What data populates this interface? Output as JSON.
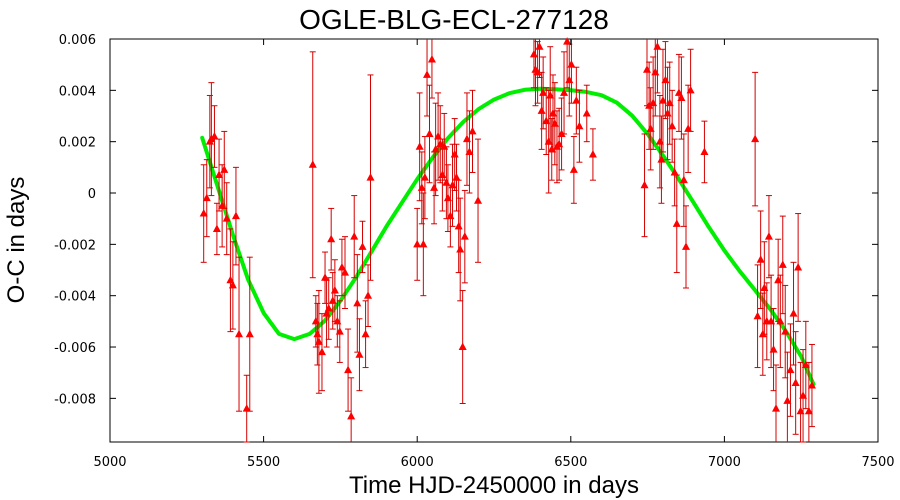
{
  "chart_data": {
    "type": "scatter",
    "title": "OGLE-BLG-ECL-277128",
    "xlabel": "Time HJD-2450000 in days",
    "ylabel": "O-C in days",
    "xlim": [
      5000,
      7500
    ],
    "ylim": [
      -0.0097,
      0.006
    ],
    "x_ticks": [
      5000,
      5500,
      6000,
      6500,
      7000,
      7500
    ],
    "x_tick_labels": [
      "5000",
      "5500",
      "6000",
      "6500",
      "7000",
      "7500"
    ],
    "y_ticks": [
      0.006,
      0.004,
      0.002,
      0,
      -0.002,
      -0.004,
      -0.006,
      -0.008
    ],
    "y_tick_labels": [
      "0.006",
      "0.004",
      "0.002",
      "0",
      "-0.002",
      "-0.004",
      "-0.006",
      "-0.008"
    ],
    "grid": false,
    "marker_color": "#ff0000",
    "fit_color": "#00ee00",
    "series": [
      {
        "kind": "points_with_errorbars",
        "points": [
          {
            "x": 5305,
            "y": -0.0008,
            "err": 0.0019
          },
          {
            "x": 5315,
            "y": -0.0002,
            "err": 0.0015
          },
          {
            "x": 5325,
            "y": 0.002,
            "err": 0.0018
          },
          {
            "x": 5330,
            "y": 0.0021,
            "err": 0.0022
          },
          {
            "x": 5340,
            "y": 0.0022,
            "err": 0.0012
          },
          {
            "x": 5348,
            "y": -0.0014,
            "err": 0.001
          },
          {
            "x": 5355,
            "y": 0.0007,
            "err": 0.0014
          },
          {
            "x": 5365,
            "y": -0.0005,
            "err": 0.0016
          },
          {
            "x": 5372,
            "y": 0.0009,
            "err": 0.0015
          },
          {
            "x": 5380,
            "y": -0.001,
            "err": 0.0014
          },
          {
            "x": 5392,
            "y": -0.0034,
            "err": 0.002
          },
          {
            "x": 5400,
            "y": -0.0036,
            "err": 0.0017
          },
          {
            "x": 5410,
            "y": -0.0009,
            "err": 0.0019
          },
          {
            "x": 5420,
            "y": -0.0055,
            "err": 0.003
          },
          {
            "x": 5445,
            "y": -0.0084,
            "err": 0.0013
          },
          {
            "x": 5455,
            "y": -0.0055,
            "err": 0.003
          },
          {
            "x": 5660,
            "y": 0.0011,
            "err": 0.0044
          },
          {
            "x": 5670,
            "y": -0.005,
            "err": 0.001
          },
          {
            "x": 5675,
            "y": -0.0055,
            "err": 0.0012
          },
          {
            "x": 5680,
            "y": -0.0058,
            "err": 0.002
          },
          {
            "x": 5690,
            "y": -0.0062,
            "err": 0.0015
          },
          {
            "x": 5700,
            "y": -0.0033,
            "err": 0.001
          },
          {
            "x": 5705,
            "y": -0.0047,
            "err": 0.0013
          },
          {
            "x": 5712,
            "y": -0.0045,
            "err": 0.0012
          },
          {
            "x": 5720,
            "y": -0.0018,
            "err": 0.0012
          },
          {
            "x": 5725,
            "y": -0.0042,
            "err": 0.0011
          },
          {
            "x": 5732,
            "y": -0.0038,
            "err": 0.0012
          },
          {
            "x": 5740,
            "y": -0.005,
            "err": 0.001
          },
          {
            "x": 5748,
            "y": -0.0054,
            "err": 0.0012
          },
          {
            "x": 5755,
            "y": -0.0029,
            "err": 0.0011
          },
          {
            "x": 5765,
            "y": -0.0031,
            "err": 0.0014
          },
          {
            "x": 5775,
            "y": -0.0069,
            "err": 0.0016
          },
          {
            "x": 5785,
            "y": -0.0087,
            "err": 0.0015
          },
          {
            "x": 5795,
            "y": -0.0017,
            "err": 0.0016
          },
          {
            "x": 5805,
            "y": -0.0043,
            "err": 0.0019
          },
          {
            "x": 5812,
            "y": -0.0063,
            "err": 0.0014
          },
          {
            "x": 5822,
            "y": -0.0021,
            "err": 0.001
          },
          {
            "x": 5832,
            "y": -0.0055,
            "err": 0.0013
          },
          {
            "x": 5840,
            "y": -0.004,
            "err": 0.0012
          },
          {
            "x": 5848,
            "y": 0.0006,
            "err": 0.004
          },
          {
            "x": 6000,
            "y": -0.002,
            "err": 0.0014
          },
          {
            "x": 6008,
            "y": 0.0018,
            "err": 0.0021
          },
          {
            "x": 6015,
            "y": 0.0002,
            "err": 0.0014
          },
          {
            "x": 6020,
            "y": -0.002,
            "err": 0.002
          },
          {
            "x": 6025,
            "y": 0.0006,
            "err": 0.0016
          },
          {
            "x": 6032,
            "y": 0.0046,
            "err": 0.0016
          },
          {
            "x": 6040,
            "y": 0.0023,
            "err": 0.0019
          },
          {
            "x": 6048,
            "y": 0.0052,
            "err": 0.0015
          },
          {
            "x": 6055,
            "y": 0.0002,
            "err": 0.0014
          },
          {
            "x": 6060,
            "y": 0.0017,
            "err": 0.0018
          },
          {
            "x": 6068,
            "y": 0.0022,
            "err": 0.0017
          },
          {
            "x": 6075,
            "y": 0.0019,
            "err": 0.0015
          },
          {
            "x": 6082,
            "y": 0.0007,
            "err": 0.0014
          },
          {
            "x": 6088,
            "y": 0.0018,
            "err": 0.0013
          },
          {
            "x": 6095,
            "y": 0.0004,
            "err": 0.0014
          },
          {
            "x": 6100,
            "y": -0.0002,
            "err": 0.0013
          },
          {
            "x": 6108,
            "y": -0.0009,
            "err": 0.0012
          },
          {
            "x": 6115,
            "y": 0.0003,
            "err": 0.0016
          },
          {
            "x": 6122,
            "y": 0.0015,
            "err": 0.0014
          },
          {
            "x": 6128,
            "y": 0.0006,
            "err": 0.0013
          },
          {
            "x": 6135,
            "y": -0.0013,
            "err": 0.0018
          },
          {
            "x": 6140,
            "y": -0.0022,
            "err": 0.002
          },
          {
            "x": 6148,
            "y": -0.006,
            "err": 0.0022
          },
          {
            "x": 6155,
            "y": -0.0017,
            "err": 0.0018
          },
          {
            "x": 6162,
            "y": 0.0021,
            "err": 0.0018
          },
          {
            "x": 6170,
            "y": 0.0016,
            "err": 0.0016
          },
          {
            "x": 6180,
            "y": 0.0024,
            "err": 0.0016
          },
          {
            "x": 6198,
            "y": -0.0003,
            "err": 0.0024
          },
          {
            "x": 6380,
            "y": 0.0054,
            "err": 0.0013
          },
          {
            "x": 6385,
            "y": 0.0048,
            "err": 0.0014
          },
          {
            "x": 6392,
            "y": 0.0047,
            "err": 0.0012
          },
          {
            "x": 6398,
            "y": 0.0057,
            "err": 0.0012
          },
          {
            "x": 6405,
            "y": 0.0032,
            "err": 0.0015
          },
          {
            "x": 6410,
            "y": 0.0039,
            "err": 0.0014
          },
          {
            "x": 6420,
            "y": 0.0028,
            "err": 0.0013
          },
          {
            "x": 6428,
            "y": 0.002,
            "err": 0.002
          },
          {
            "x": 6433,
            "y": 0.0038,
            "err": 0.0019
          },
          {
            "x": 6438,
            "y": 0.0017,
            "err": 0.0012
          },
          {
            "x": 6442,
            "y": 0.0031,
            "err": 0.0015
          },
          {
            "x": 6448,
            "y": 0.0027,
            "err": 0.0016
          },
          {
            "x": 6455,
            "y": 0.0018,
            "err": 0.0014
          },
          {
            "x": 6462,
            "y": 0.0019,
            "err": 0.0014
          },
          {
            "x": 6470,
            "y": 0.0023,
            "err": 0.0014
          },
          {
            "x": 6478,
            "y": 0.0039,
            "err": 0.0016
          },
          {
            "x": 6488,
            "y": 0.0059,
            "err": 0.0018
          },
          {
            "x": 6495,
            "y": 0.0044,
            "err": 0.0014
          },
          {
            "x": 6502,
            "y": 0.005,
            "err": 0.0015
          },
          {
            "x": 6510,
            "y": 0.0009,
            "err": 0.0013
          },
          {
            "x": 6518,
            "y": 0.0036,
            "err": 0.0013
          },
          {
            "x": 6528,
            "y": 0.0026,
            "err": 0.0014
          },
          {
            "x": 6552,
            "y": 0.0031,
            "err": 0.0011
          },
          {
            "x": 6572,
            "y": 0.0015,
            "err": 0.001
          },
          {
            "x": 6740,
            "y": 0.0003,
            "err": 0.002
          },
          {
            "x": 6748,
            "y": 0.0048,
            "err": 0.0014
          },
          {
            "x": 6755,
            "y": 0.0034,
            "err": 0.0017
          },
          {
            "x": 6760,
            "y": 0.0025,
            "err": 0.0016
          },
          {
            "x": 6768,
            "y": 0.0035,
            "err": 0.0018
          },
          {
            "x": 6775,
            "y": 0.0047,
            "err": 0.0017
          },
          {
            "x": 6782,
            "y": 0.0057,
            "err": 0.0018
          },
          {
            "x": 6790,
            "y": 0.002,
            "err": 0.0018
          },
          {
            "x": 6795,
            "y": 0.0013,
            "err": 0.0017
          },
          {
            "x": 6800,
            "y": 0.0036,
            "err": 0.002
          },
          {
            "x": 6808,
            "y": 0.0044,
            "err": 0.0015
          },
          {
            "x": 6815,
            "y": 0.0031,
            "err": 0.0018
          },
          {
            "x": 6822,
            "y": 0.0035,
            "err": 0.0016
          },
          {
            "x": 6830,
            "y": 0.0026,
            "err": 0.0014
          },
          {
            "x": 6838,
            "y": 0.0008,
            "err": 0.0013
          },
          {
            "x": 6845,
            "y": -0.0012,
            "err": 0.0019
          },
          {
            "x": 6852,
            "y": 0.0039,
            "err": 0.0015
          },
          {
            "x": 6860,
            "y": 0.0037,
            "err": 0.0016
          },
          {
            "x": 6868,
            "y": 0.0005,
            "err": 0.0018
          },
          {
            "x": 6875,
            "y": -0.0021,
            "err": 0.0016
          },
          {
            "x": 6882,
            "y": 0.0025,
            "err": 0.0017
          },
          {
            "x": 6890,
            "y": 0.004,
            "err": 0.0016
          },
          {
            "x": 6935,
            "y": 0.0016,
            "err": 0.0012
          },
          {
            "x": 7100,
            "y": 0.0021,
            "err": 0.0026
          },
          {
            "x": 7108,
            "y": -0.0048,
            "err": 0.002
          },
          {
            "x": 7118,
            "y": -0.0026,
            "err": 0.0019
          },
          {
            "x": 7125,
            "y": -0.0055,
            "err": 0.0016
          },
          {
            "x": 7130,
            "y": -0.0037,
            "err": 0.0018
          },
          {
            "x": 7138,
            "y": -0.005,
            "err": 0.0015
          },
          {
            "x": 7145,
            "y": -0.0017,
            "err": 0.0016
          },
          {
            "x": 7152,
            "y": -0.005,
            "err": 0.0018
          },
          {
            "x": 7160,
            "y": -0.0061,
            "err": 0.0016
          },
          {
            "x": 7168,
            "y": -0.0084,
            "err": 0.0017
          },
          {
            "x": 7175,
            "y": -0.0034,
            "err": 0.0016
          },
          {
            "x": 7182,
            "y": -0.005,
            "err": 0.0018
          },
          {
            "x": 7190,
            "y": -0.0028,
            "err": 0.0019
          },
          {
            "x": 7198,
            "y": -0.0054,
            "err": 0.0018
          },
          {
            "x": 7205,
            "y": -0.0081,
            "err": 0.0019
          },
          {
            "x": 7215,
            "y": -0.0069,
            "err": 0.0018
          },
          {
            "x": 7225,
            "y": -0.0047,
            "err": 0.002
          },
          {
            "x": 7232,
            "y": -0.0074,
            "err": 0.002
          },
          {
            "x": 7240,
            "y": -0.0029,
            "err": 0.0021
          },
          {
            "x": 7248,
            "y": -0.0085,
            "err": 0.0019
          },
          {
            "x": 7256,
            "y": -0.0079,
            "err": 0.0018
          },
          {
            "x": 7265,
            "y": -0.0067,
            "err": 0.0017
          },
          {
            "x": 7275,
            "y": -0.0085,
            "err": 0.0019
          },
          {
            "x": 7285,
            "y": -0.0075,
            "err": 0.0016
          }
        ]
      },
      {
        "kind": "fit_curve",
        "x": [
          5300,
          5350,
          5400,
          5450,
          5500,
          5550,
          5600,
          5650,
          5700,
          5750,
          5800,
          5850,
          5900,
          5950,
          6000,
          6050,
          6100,
          6150,
          6200,
          6250,
          6300,
          6350,
          6400,
          6450,
          6500,
          6550,
          6600,
          6650,
          6700,
          6750,
          6800,
          6850,
          6900,
          6950,
          7000,
          7050,
          7100,
          7150,
          7200,
          7250,
          7290
        ],
        "y": [
          0.00215,
          0.00027,
          -0.00163,
          -0.00338,
          -0.00467,
          -0.00549,
          -0.00569,
          -0.00549,
          -0.00497,
          -0.0042,
          -0.0033,
          -0.00231,
          -0.0013,
          -0.00038,
          0.00054,
          0.00138,
          0.00213,
          0.00277,
          0.00327,
          0.00364,
          0.00389,
          0.00402,
          0.00406,
          0.00404,
          0.004,
          0.00394,
          0.00381,
          0.00352,
          0.00301,
          0.0023,
          0.00146,
          0.00057,
          -0.00038,
          -0.00134,
          -0.00224,
          -0.00305,
          -0.00379,
          -0.00454,
          -0.00538,
          -0.00637,
          -0.00745
        ]
      }
    ]
  }
}
